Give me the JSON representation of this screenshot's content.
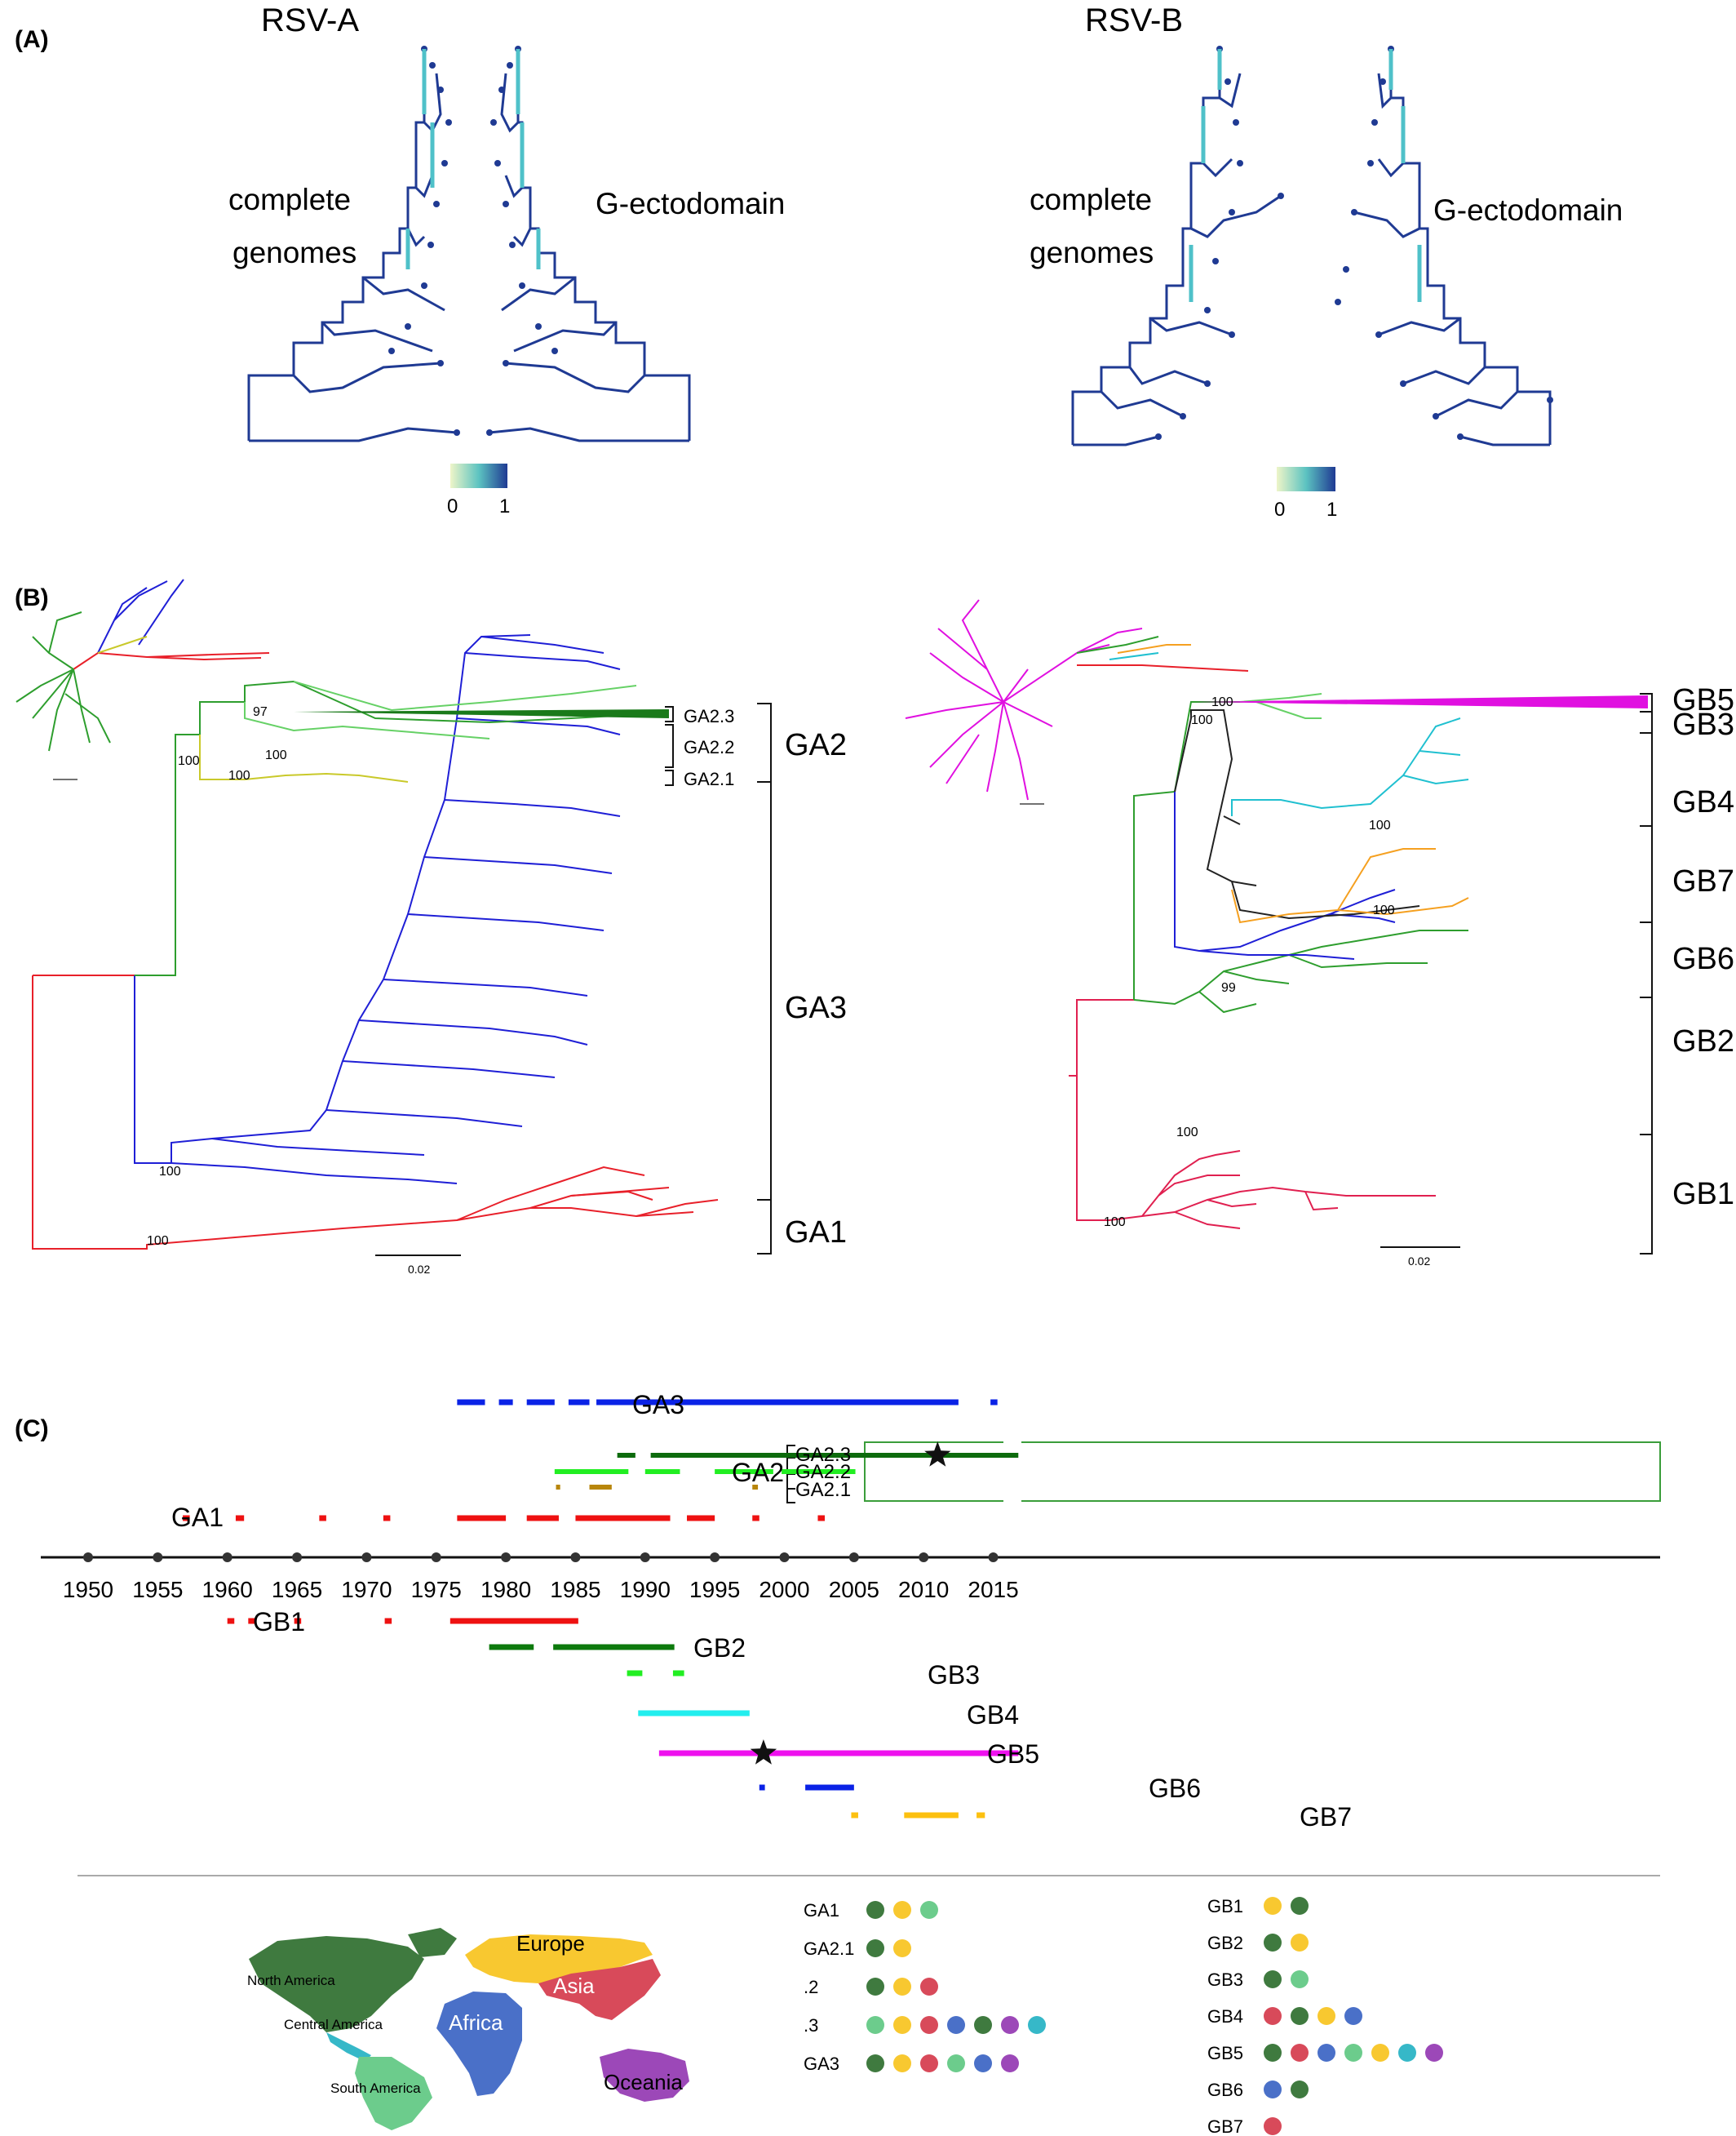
{
  "panel_labels": {
    "a": "(A)",
    "b": "(B)",
    "c": "(C)"
  },
  "panel_a": {
    "title_left": "RSV-A",
    "title_right": "RSV-B",
    "left_label_1": "complete",
    "left_label_2": "genomes",
    "right_label": "G-ectodomain",
    "scale_min": "0",
    "scale_max": "1",
    "colors": {
      "tree": "#1f3a93",
      "tips": "#4fc1c9",
      "scale": [
        "#eef5c8",
        "#5cc3c1",
        "#1f3a93"
      ]
    }
  },
  "panel_b": {
    "rsva": {
      "clades": [
        "GA2.3",
        "GA2.2",
        "GA2.1"
      ],
      "groups": [
        "GA2",
        "GA3",
        "GA1"
      ],
      "bootstraps": [
        "97",
        "100",
        "100",
        "100",
        "100",
        "100"
      ],
      "scale": "0.02"
    },
    "rsvb": {
      "groups": [
        "GB5",
        "GB3",
        "GB4",
        "GB7",
        "GB6",
        "GB2",
        "GB1"
      ],
      "bootstraps": [
        "100",
        "100",
        "100",
        "100",
        "99",
        "100",
        "100"
      ],
      "scale": "0.02"
    },
    "colors": {
      "red": "#e8202a",
      "blue": "#1f1fd6",
      "green": "#2e9e2e",
      "lightgreen": "#66d166",
      "yellow": "#c9c92a",
      "darkgreen": "#1a7a1a",
      "magenta": "#e010e0",
      "cyan": "#20c0d0",
      "orange": "#f5a020",
      "black": "#222222",
      "crimson": "#e02050"
    }
  },
  "panel_c": {
    "axis_labels": [
      "1950",
      "1955",
      "1960",
      "1965",
      "1970",
      "1975",
      "1980",
      "1985",
      "1990",
      "1995",
      "2000",
      "2005",
      "2010",
      "2015"
    ],
    "labels": {
      "ga3": "GA3",
      "ga2": "GA2",
      "ga23": "GA2.3",
      "ga22": "GA2.2",
      "ga21": "GA2.1",
      "ga1": "GA1",
      "gb1": "GB1",
      "gb2": "GB2",
      "gb3": "GB3",
      "gb4": "GB4",
      "gb5": "GB5",
      "gb6": "GB6",
      "gb7": "GB7"
    },
    "timeline": {
      "GA3": [
        [
          1976.5,
          1978.5
        ],
        [
          1979.5,
          1980.5
        ],
        [
          1981.5,
          1983.5
        ],
        [
          1984.5,
          1986
        ],
        [
          1986.5,
          2012.5
        ],
        [
          2014.8,
          2015.3
        ]
      ],
      "GA2.3": [
        [
          1988,
          1989.3
        ],
        [
          1990.4,
          2016.8
        ]
      ],
      "GA2.2": [
        [
          1983.5,
          1988.8
        ],
        [
          1990,
          1992.5
        ],
        [
          1995,
          1999.2
        ],
        [
          1999.8,
          2005.1
        ]
      ],
      "GA2.1": [
        [
          1983.6,
          1983.9
        ],
        [
          1986,
          1987.6
        ],
        [
          1997.7,
          1998.1
        ]
      ],
      "GA1": [
        [
          1956.8,
          1957.3
        ],
        [
          1960.6,
          1961.2
        ],
        [
          1966.6,
          1967.1
        ],
        [
          1971.2,
          1971.7
        ],
        [
          1976.5,
          1980
        ],
        [
          1981.5,
          1983.8
        ],
        [
          1985,
          1991.8
        ],
        [
          1993,
          1995
        ],
        [
          1997.7,
          1998.2
        ],
        [
          2002.4,
          2002.9
        ]
      ],
      "GB1": [
        [
          1960,
          1960.5
        ],
        [
          1961.5,
          1962
        ],
        [
          1964.8,
          1965.3
        ],
        [
          1971.3,
          1971.8
        ],
        [
          1976,
          1985.2
        ]
      ],
      "GB2": [
        [
          1978.8,
          1982
        ],
        [
          1983.4,
          1992.1
        ]
      ],
      "GB3": [
        [
          1988.7,
          1989.8
        ],
        [
          1992,
          1992.8
        ]
      ],
      "GB4": [
        [
          1989.5,
          1997.5
        ]
      ],
      "GB5": [
        [
          1991,
          2016.8
        ]
      ],
      "GB6": [
        [
          1998.2,
          1998.6
        ],
        [
          2001.5,
          2005
        ]
      ],
      "GB7": [
        [
          2004.8,
          2005.3
        ],
        [
          2008.6,
          2012.5
        ],
        [
          2013.8,
          2014.4
        ]
      ]
    },
    "colors": {
      "GA3": "#0a22e6",
      "GA2.3": "#0d6b0d",
      "GA2.2": "#22ee22",
      "GA2.1": "#b8860b",
      "GA1": "#ee1111",
      "GB1": "#ee1111",
      "GB2": "#0d7a0d",
      "GB3": "#22ee22",
      "GB4": "#22eeee",
      "GB5": "#ee10ee",
      "GB6": "#0a22e6",
      "GB7": "#fcc010",
      "box": "#3a9d3a"
    },
    "stars": [
      {
        "group": "GA2.3",
        "year": 2011
      },
      {
        "group": "GB5",
        "year": 1998.5
      }
    ]
  },
  "map": {
    "regions": [
      "North America",
      "Central America",
      "South America",
      "Europe",
      "Africa",
      "Asia",
      "Oceania"
    ],
    "region_colors": {
      "North America": "#3f7a3f",
      "Central America": "#36b8c8",
      "South America": "#6ccc8c",
      "Europe": "#f8c830",
      "Africa": "#4a70c8",
      "Asia": "#d84a5a",
      "Oceania": "#9c48b8"
    }
  },
  "legend": {
    "left": [
      {
        "label": "GA1",
        "regions": [
          "North America",
          "Europe",
          "South America"
        ]
      },
      {
        "label": "GA2.1",
        "regions": [
          "North America",
          "Europe"
        ]
      },
      {
        "label": ".2",
        "regions": [
          "North America",
          "Europe",
          "Asia"
        ]
      },
      {
        "label": ".3",
        "regions": [
          "South America",
          "Europe",
          "Asia",
          "Africa",
          "North America",
          "Oceania",
          "Central America"
        ]
      },
      {
        "label": "GA3",
        "regions": [
          "North America",
          "Europe",
          "Asia",
          "South America",
          "Africa",
          "Oceania"
        ]
      }
    ],
    "right": [
      {
        "label": "GB1",
        "regions": [
          "Europe",
          "North America"
        ]
      },
      {
        "label": "GB2",
        "regions": [
          "North America",
          "Europe"
        ]
      },
      {
        "label": "GB3",
        "regions": [
          "North America",
          "South America"
        ]
      },
      {
        "label": "GB4",
        "regions": [
          "Asia",
          "North America",
          "Europe",
          "Africa"
        ]
      },
      {
        "label": "GB5",
        "regions": [
          "North America",
          "Asia",
          "Africa",
          "South America",
          "Europe",
          "Central America",
          "Oceania"
        ]
      },
      {
        "label": "GB6",
        "regions": [
          "Africa",
          "North America"
        ]
      },
      {
        "label": "GB7",
        "regions": [
          "Asia"
        ]
      }
    ]
  }
}
